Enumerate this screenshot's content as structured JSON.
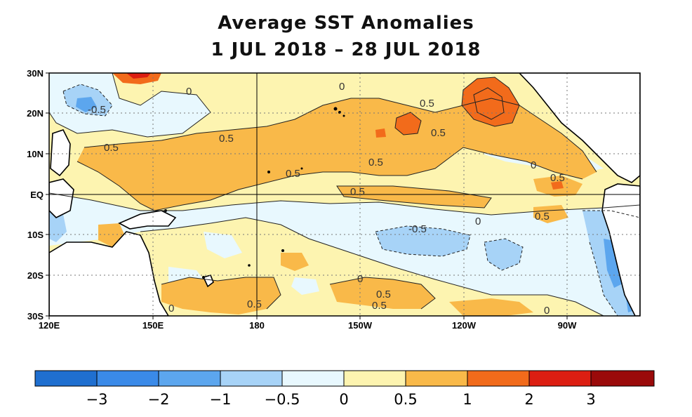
{
  "title": {
    "line1": "Average SST Anomalies",
    "line2": "1 JUL 2018 – 28 JUL 2018"
  },
  "axes": {
    "x_ticks": [
      "120E",
      "150E",
      "180",
      "150W",
      "120W",
      "90W"
    ],
    "y_ticks": [
      "30N",
      "20N",
      "10N",
      "EQ",
      "10S",
      "20S",
      "30S"
    ]
  },
  "contour_labels": {
    "l1": "0",
    "l2": "0",
    "l3": "-0.5",
    "l4": "0.5",
    "l5": "0.5",
    "l6": "0.5",
    "l7": "0.5",
    "l8": "0.5",
    "l9": "0.5",
    "l10": "0.5",
    "l11": "0",
    "l12": "0.5",
    "l13": "0.5",
    "l14": "-0.5",
    "l15": "0",
    "l16": "0.5",
    "l17": "0",
    "l18": "0.5",
    "l19": "0.5",
    "l20": "0",
    "l21": "0"
  },
  "colorbar": {
    "labels": [
      "−3",
      "−2",
      "−1",
      "−0.5",
      "0",
      "0.5",
      "1",
      "2",
      "3"
    ],
    "colors": {
      "lt_m3": "#1f6fd0",
      "m3_m2": "#3a8ae8",
      "m2_m1": "#5ca6ee",
      "m1_m05": "#a7d3f7",
      "m05_0": "#e8f8fe",
      "0_05": "#fdf4b0",
      "05_1": "#f9b949",
      "1_2": "#f26b1b",
      "2_3": "#dc1e12",
      "gt_3": "#9a0a0a"
    }
  }
}
